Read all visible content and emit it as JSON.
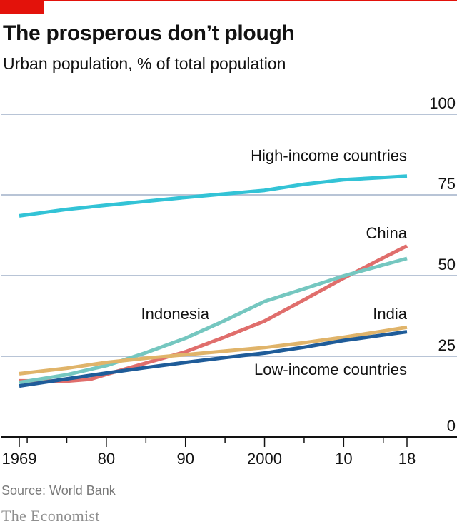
{
  "header": {
    "title": "The prosperous don’t plough",
    "subtitle": "Urban population, % of total population"
  },
  "footer": {
    "source": "Source: World Bank",
    "brand": "The Economist"
  },
  "colors": {
    "accent": "#e3120b",
    "grid": "#b8c4d6",
    "axis": "#121212"
  },
  "chart_data": {
    "type": "line",
    "x_tick_labels": [
      "1969",
      "80",
      "90",
      "2000",
      "10",
      "18"
    ],
    "x_tick_values": [
      1969,
      1980,
      1990,
      2000,
      2010,
      2018
    ],
    "y_tick_labels": [
      "0",
      "25",
      "50",
      "75",
      "100"
    ],
    "y_tick_values": [
      0,
      25,
      50,
      75,
      100
    ],
    "xlim": [
      1969,
      2018
    ],
    "ylim": [
      0,
      100
    ],
    "grid": true,
    "y_axis_side": "right",
    "series": [
      {
        "name": "High-income countries",
        "color": "#33c3d6",
        "points": [
          [
            1969,
            68.5
          ],
          [
            1975,
            70.5
          ],
          [
            1980,
            71.8
          ],
          [
            1985,
            73.0
          ],
          [
            1990,
            74.2
          ],
          [
            1995,
            75.3
          ],
          [
            2000,
            76.4
          ],
          [
            2005,
            78.3
          ],
          [
            2010,
            79.7
          ],
          [
            2015,
            80.4
          ],
          [
            2018,
            80.8
          ]
        ]
      },
      {
        "name": "China",
        "color": "#e06e6c",
        "points": [
          [
            1969,
            17.4
          ],
          [
            1975,
            17.3
          ],
          [
            1978,
            17.9
          ],
          [
            1980,
            19.4
          ],
          [
            1985,
            22.9
          ],
          [
            1990,
            26.4
          ],
          [
            1995,
            31.0
          ],
          [
            2000,
            35.9
          ],
          [
            2005,
            42.5
          ],
          [
            2010,
            49.2
          ],
          [
            2015,
            55.5
          ],
          [
            2018,
            59.2
          ]
        ]
      },
      {
        "name": "Indonesia",
        "color": "#75c7c0",
        "points": [
          [
            1969,
            16.9
          ],
          [
            1975,
            19.3
          ],
          [
            1980,
            22.1
          ],
          [
            1985,
            26.1
          ],
          [
            1990,
            30.6
          ],
          [
            1995,
            36.1
          ],
          [
            2000,
            42.0
          ],
          [
            2005,
            45.9
          ],
          [
            2010,
            49.9
          ],
          [
            2015,
            53.3
          ],
          [
            2018,
            55.3
          ]
        ]
      },
      {
        "name": "India",
        "color": "#e0b46a",
        "points": [
          [
            1969,
            19.6
          ],
          [
            1975,
            21.3
          ],
          [
            1980,
            23.1
          ],
          [
            1985,
            24.4
          ],
          [
            1990,
            25.5
          ],
          [
            1995,
            26.6
          ],
          [
            2000,
            27.7
          ],
          [
            2005,
            29.2
          ],
          [
            2010,
            30.9
          ],
          [
            2015,
            32.8
          ],
          [
            2018,
            34.0
          ]
        ]
      },
      {
        "name": "Low-income countries",
        "color": "#1f5c99",
        "points": [
          [
            1969,
            15.8
          ],
          [
            1975,
            18.0
          ],
          [
            1980,
            19.8
          ],
          [
            1985,
            21.5
          ],
          [
            1990,
            23.1
          ],
          [
            1995,
            24.6
          ],
          [
            2000,
            26.0
          ],
          [
            2005,
            27.8
          ],
          [
            2010,
            29.9
          ],
          [
            2015,
            31.6
          ],
          [
            2018,
            32.6
          ]
        ]
      }
    ],
    "annotations": [
      {
        "text": "High-income countries",
        "series": "High-income countries",
        "at_x": 2018,
        "at_y": 85.5,
        "anchor": "end"
      },
      {
        "text": "China",
        "series": "China",
        "at_x": 2018,
        "at_y": 61.5,
        "anchor": "end"
      },
      {
        "text": "Indonesia",
        "series": "Indonesia",
        "at_x": 1993,
        "at_y": 36.5,
        "anchor": "end"
      },
      {
        "text": "India",
        "series": "India",
        "at_x": 2018,
        "at_y": 36.5,
        "anchor": "end"
      },
      {
        "text": "Low-income countries",
        "series": "Low-income countries",
        "at_x": 2018,
        "at_y": 19.3,
        "anchor": "end"
      }
    ]
  }
}
